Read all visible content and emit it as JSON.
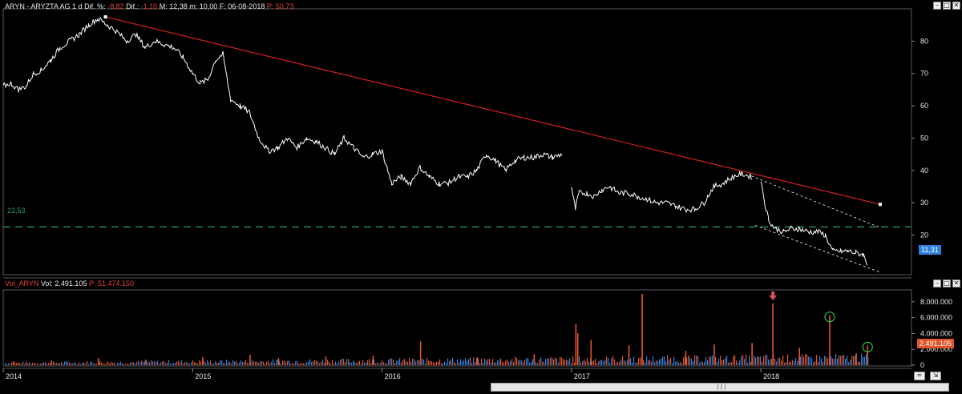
{
  "price_panel": {
    "symbol_name": "ARYN - ARYZTA AG",
    "interval": "1 d",
    "dif_pct_label": "Dif. %:",
    "dif_pct_value": "-8,82",
    "dif_label": "Dif.:",
    "dif_value": "-1,10",
    "max_label": "M: 12,38",
    "min_label": "m: 10,00",
    "date_label": "F: 06-08-2018",
    "p_label": "P: 50,73",
    "support_label": "22,53",
    "last_price_label": "11,31",
    "y_ticks": [
      "80",
      "70",
      "60",
      "50",
      "40",
      "30",
      "20"
    ]
  },
  "volume_panel": {
    "title": "Vol_ARYN",
    "vol_label": "Vol:",
    "vol_value": "2.491.105",
    "p_label": "P: 51.474.150",
    "last_volume_label": "2.491.105",
    "y_ticks": [
      "8.000.000",
      "6.000.000",
      "4.000.000",
      "2.000.000",
      "0"
    ]
  },
  "x_axis": {
    "years": [
      "2014",
      "2015",
      "2016",
      "2017",
      "2018"
    ]
  },
  "window_buttons": {
    "minimize": "–",
    "maximize": "□",
    "close": "✕"
  },
  "scroll_thumb": "|||",
  "colors": {
    "background": "#000000",
    "price_line": "#ffffff",
    "trendline": "#d42020",
    "support_line": "#2e9e6a",
    "volume_up": "#2f7fe0",
    "volume_down": "#e0542a",
    "highlight_circle": "#2fbf4a",
    "last_price_box": "#2f7fe0",
    "last_volume_box": "#e0542a"
  },
  "chart_data": [
    {
      "type": "line",
      "name": "ARYN price",
      "x_unit": "year",
      "xlim": [
        2014.0,
        2018.63
      ],
      "ylim": [
        8,
        90
      ],
      "x": [
        2014.0,
        2014.04,
        2014.08,
        2014.12,
        2014.16,
        2014.2,
        2014.25,
        2014.3,
        2014.35,
        2014.4,
        2014.45,
        2014.5,
        2014.55,
        2014.6,
        2014.65,
        2014.7,
        2014.75,
        2014.8,
        2014.85,
        2014.9,
        2014.95,
        2015.0,
        2015.04,
        2015.08,
        2015.12,
        2015.16,
        2015.2,
        2015.25,
        2015.3,
        2015.35,
        2015.4,
        2015.45,
        2015.5,
        2015.55,
        2015.6,
        2015.65,
        2015.7,
        2015.75,
        2015.8,
        2015.85,
        2015.9,
        2015.95,
        2016.0,
        2016.05,
        2016.1,
        2016.15,
        2016.2,
        2016.25,
        2016.3,
        2016.35,
        2016.4,
        2016.45,
        2016.5,
        2016.55,
        2016.6,
        2016.65,
        2016.7,
        2016.75,
        2016.8,
        2016.85,
        2016.9,
        2016.95,
        2017.0,
        2017.02,
        2017.04,
        2017.08,
        2017.12,
        2017.16,
        2017.2,
        2017.25,
        2017.3,
        2017.35,
        2017.4,
        2017.45,
        2017.5,
        2017.55,
        2017.6,
        2017.65,
        2017.7,
        2017.75,
        2017.8,
        2017.85,
        2017.9,
        2017.95,
        2018.0,
        2018.02,
        2018.04,
        2018.06,
        2018.08,
        2018.12,
        2018.16,
        2018.2,
        2018.25,
        2018.3,
        2018.34,
        2018.38,
        2018.42,
        2018.46,
        2018.5,
        2018.54,
        2018.56
      ],
      "y": [
        66,
        67,
        65,
        66,
        70,
        71,
        74,
        78,
        80,
        82,
        85,
        87,
        85,
        83,
        80,
        82,
        78,
        80,
        79,
        78,
        75,
        70,
        67,
        68,
        74,
        76,
        62,
        60,
        58,
        50,
        46,
        47,
        50,
        47,
        50,
        49,
        47,
        45,
        50,
        47,
        44,
        45,
        46,
        36,
        38,
        36,
        41,
        38,
        36,
        36,
        38,
        38,
        40,
        45,
        43,
        40,
        43,
        44,
        44,
        45,
        44,
        45,
        35,
        28,
        33,
        33,
        32,
        34,
        35,
        33,
        33,
        32,
        31,
        30,
        30,
        29,
        28,
        28,
        30,
        35,
        36,
        38,
        39,
        38,
        37,
        30,
        25,
        23,
        22,
        21,
        22,
        22,
        21,
        21,
        20,
        15,
        15,
        15,
        14.5,
        14,
        11.3
      ]
    },
    {
      "type": "line",
      "name": "trendline",
      "x": [
        2014.54,
        2018.63
      ],
      "y": [
        87.5,
        29.5
      ]
    },
    {
      "type": "line",
      "name": "support",
      "y": [
        22.53
      ]
    },
    {
      "type": "line",
      "name": "channel upper",
      "x": [
        2017.95,
        2018.63
      ],
      "y": [
        38.3,
        22.3
      ]
    },
    {
      "type": "line",
      "name": "channel lower",
      "x": [
        2017.97,
        2018.63
      ],
      "y": [
        23.0,
        8.5
      ]
    },
    {
      "type": "bar",
      "name": "Vol_ARYN",
      "ylim": [
        0,
        9500000
      ],
      "x": [
        2014.05,
        2014.25,
        2014.5,
        2014.75,
        2015.05,
        2015.3,
        2015.45,
        2015.7,
        2015.95,
        2016.2,
        2016.5,
        2016.8,
        2017.02,
        2017.03,
        2017.1,
        2017.3,
        2017.37,
        2017.6,
        2017.75,
        2017.95,
        2018.06,
        2018.2,
        2018.36,
        2018.5,
        2018.56
      ],
      "values": [
        500000,
        600000,
        900000,
        700000,
        1000000,
        1300000,
        900000,
        1100000,
        1200000,
        3000000,
        1000000,
        1400000,
        5200000,
        4000000,
        3200000,
        2500000,
        9000000,
        1800000,
        2600000,
        2800000,
        7800000,
        2200000,
        6300000,
        1500000,
        2491105
      ],
      "highlights": [
        {
          "x": 2018.06,
          "marker": "arrow"
        },
        {
          "x": 2018.36,
          "marker": "circle"
        },
        {
          "x": 2018.56,
          "marker": "circle"
        }
      ]
    }
  ]
}
